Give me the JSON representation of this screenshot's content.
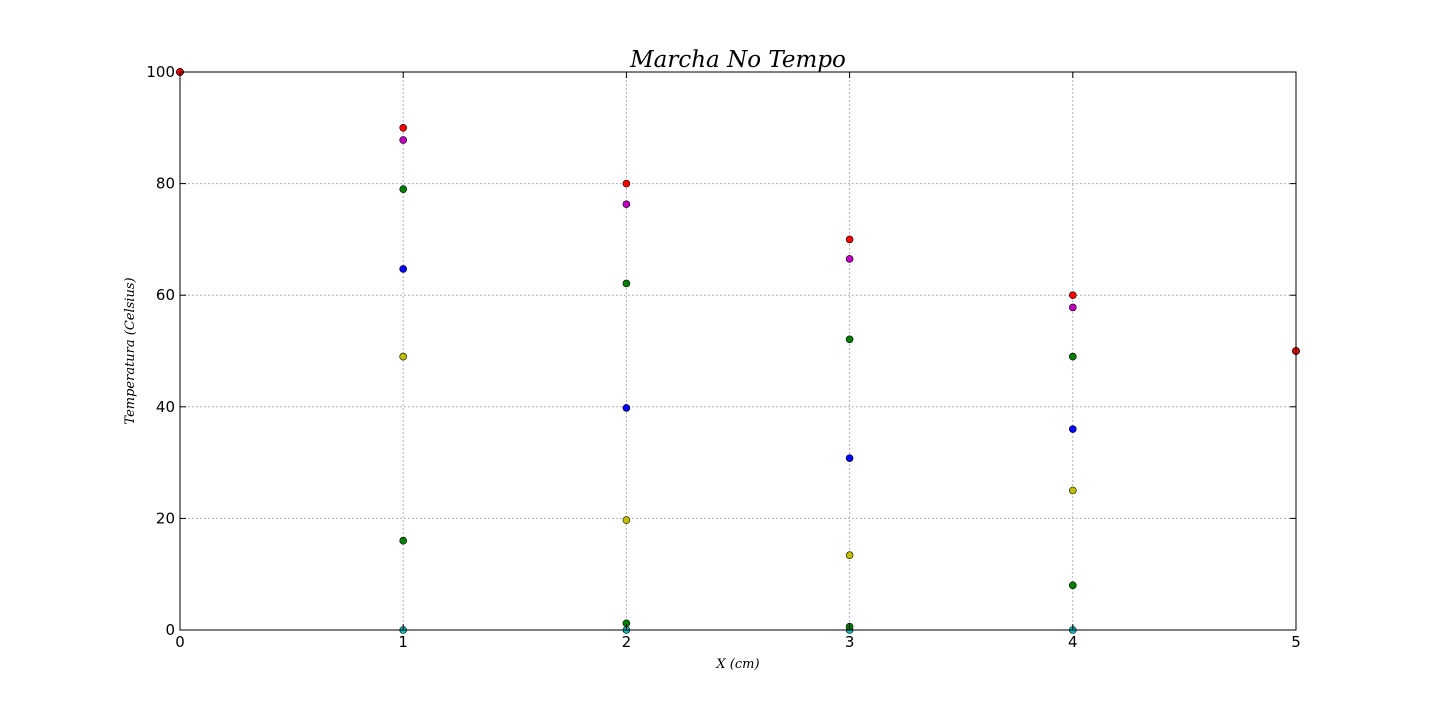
{
  "chart_data": {
    "type": "scatter",
    "title": "Marcha No Tempo",
    "xlabel": "X (cm)",
    "ylabel": "Temperatura (Celsius)",
    "xlim": [
      0,
      5
    ],
    "ylim": [
      0,
      100
    ],
    "xticks": [
      0,
      1,
      2,
      3,
      4,
      5
    ],
    "yticks": [
      0,
      20,
      40,
      60,
      80,
      100
    ],
    "grid": true,
    "legend": "none",
    "series": [
      {
        "color": "#00bfbf",
        "x": [
          0,
          1,
          2,
          3,
          4,
          5
        ],
        "y": [
          100,
          0,
          0,
          0,
          0,
          50
        ]
      },
      {
        "color": "#008000",
        "x": [
          0,
          1,
          2,
          3,
          4,
          5
        ],
        "y": [
          100,
          16,
          1.2,
          0.6,
          8,
          50
        ]
      },
      {
        "color": "#bfbf00",
        "x": [
          0,
          1,
          2,
          3,
          4,
          5
        ],
        "y": [
          100,
          49,
          19.7,
          13.4,
          25,
          50
        ]
      },
      {
        "color": "#0000ff",
        "x": [
          0,
          1,
          2,
          3,
          4,
          5
        ],
        "y": [
          100,
          64.7,
          39.8,
          30.8,
          36,
          50
        ]
      },
      {
        "color": "#008000",
        "x": [
          0,
          1,
          2,
          3,
          4,
          5
        ],
        "y": [
          100,
          79,
          62.1,
          52.1,
          49,
          50
        ]
      },
      {
        "color": "#bf00bf",
        "x": [
          0,
          1,
          2,
          3,
          4,
          5
        ],
        "y": [
          100,
          87.8,
          76.3,
          66.5,
          57.8,
          50
        ]
      },
      {
        "color": "#ff0000",
        "x": [
          0,
          1,
          2,
          3,
          4,
          5
        ],
        "y": [
          100,
          90,
          80,
          70,
          60,
          50
        ]
      }
    ]
  }
}
